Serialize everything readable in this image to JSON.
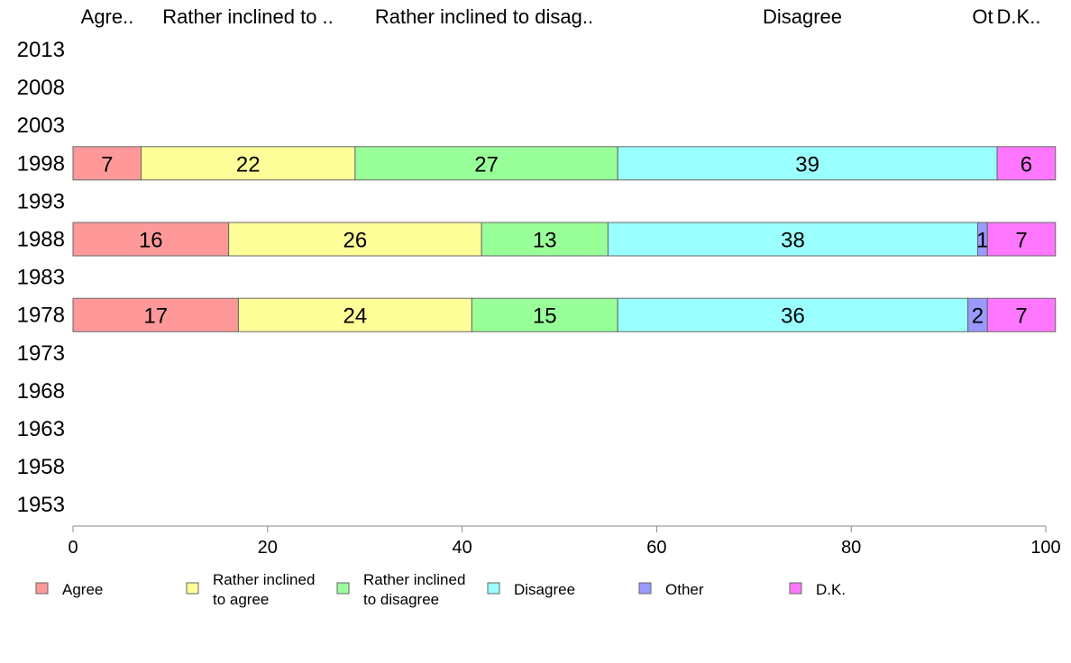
{
  "chart_data": {
    "type": "bar",
    "orientation": "horizontal",
    "stacked": true,
    "categories": [
      "2013",
      "2008",
      "2003",
      "1998",
      "1993",
      "1988",
      "1983",
      "1978",
      "1973",
      "1968",
      "1963",
      "1958",
      "1953"
    ],
    "series": [
      {
        "name": "Agree",
        "color": "#ff9999",
        "values": [
          null,
          null,
          null,
          7,
          null,
          16,
          null,
          17,
          null,
          null,
          null,
          null,
          null
        ]
      },
      {
        "name": "Rather inclined to agree",
        "color": "#ffff99",
        "values": [
          null,
          null,
          null,
          22,
          null,
          26,
          null,
          24,
          null,
          null,
          null,
          null,
          null
        ]
      },
      {
        "name": "Rather inclined to disagree",
        "color": "#99ff99",
        "values": [
          null,
          null,
          null,
          27,
          null,
          13,
          null,
          15,
          null,
          null,
          null,
          null,
          null
        ]
      },
      {
        "name": "Disagree",
        "color": "#99ffff",
        "values": [
          null,
          null,
          null,
          39,
          null,
          38,
          null,
          36,
          null,
          null,
          null,
          null,
          null
        ]
      },
      {
        "name": "Other",
        "color": "#9999ff",
        "values": [
          null,
          null,
          null,
          0,
          null,
          1,
          null,
          2,
          null,
          null,
          null,
          null,
          null
        ]
      },
      {
        "name": "D.K.",
        "color": "#ff77ff",
        "values": [
          null,
          null,
          null,
          6,
          null,
          7,
          null,
          7,
          null,
          null,
          null,
          null,
          null
        ]
      }
    ],
    "xlim": [
      0,
      100
    ],
    "xticks": [
      0,
      20,
      40,
      60,
      80,
      100
    ],
    "top_labels": [
      "Agre..",
      "Rather inclined to ..",
      "Rather inclined to disag..",
      "Disagree",
      "Ot",
      "D.K.."
    ],
    "legend": {
      "placement": "bottom",
      "entries": [
        {
          "lines": [
            "Agree"
          ]
        },
        {
          "lines": [
            "Rather inclined",
            "to agree"
          ]
        },
        {
          "lines": [
            "Rather inclined",
            "to disagree"
          ]
        },
        {
          "lines": [
            "Disagree"
          ]
        },
        {
          "lines": [
            "Other"
          ]
        },
        {
          "lines": [
            "D.K."
          ]
        }
      ]
    },
    "grid": false,
    "bar_border_color": "#666666",
    "axis_color": "#888888"
  }
}
